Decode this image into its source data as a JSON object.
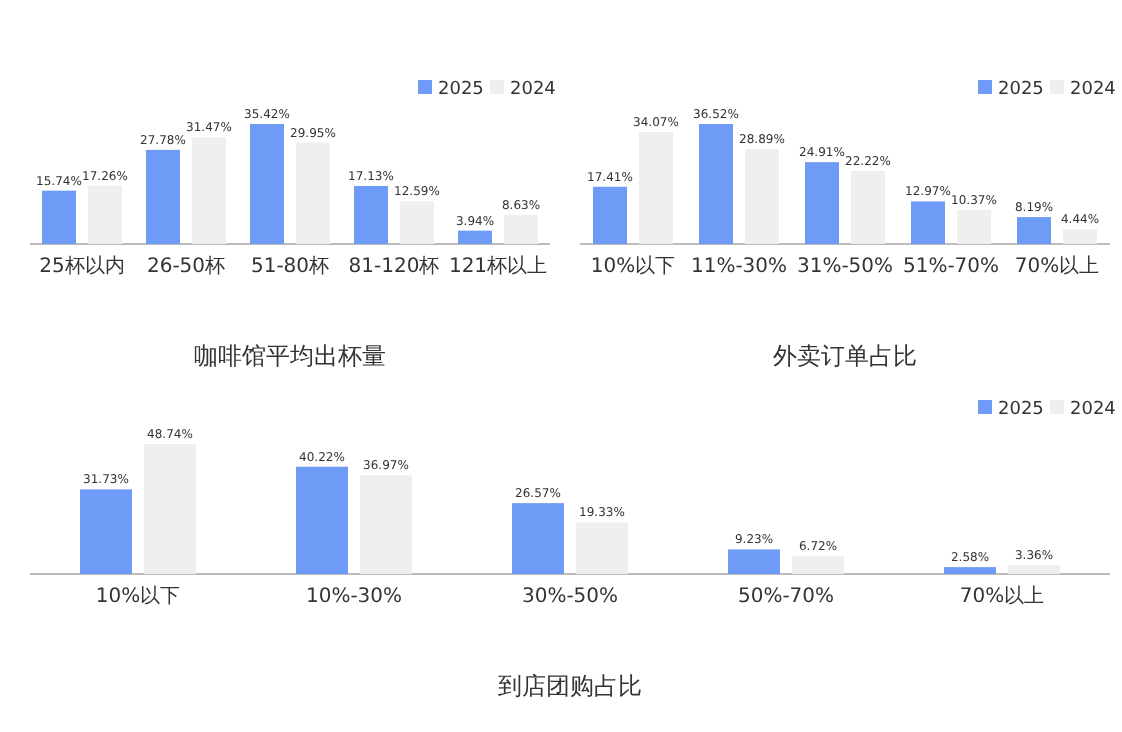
{
  "chart_data": [
    {
      "type": "bar",
      "title": "咖啡馆平均出杯量",
      "categories": [
        "25杯以内",
        "26-50杯",
        "51-80杯",
        "81-120杯",
        "121杯以上"
      ],
      "legend": "top right",
      "series": [
        {
          "name": "2025",
          "color": "#6e9bf5",
          "values": [
            15.74,
            27.78,
            35.42,
            17.13,
            3.94
          ],
          "value_labels": [
            "15.74%",
            "27.78%",
            "35.42%",
            "17.13%",
            "3.94%"
          ]
        },
        {
          "name": "2024",
          "color": "#efefef",
          "values": [
            17.26,
            31.47,
            29.95,
            12.59,
            8.63
          ],
          "value_labels": [
            "17.26%",
            "31.47%",
            "29.95%",
            "12.59%",
            "8.63%"
          ]
        }
      ]
    },
    {
      "type": "bar",
      "title": "外卖订单占比",
      "categories": [
        "10%以下",
        "11%-30%",
        "31%-50%",
        "51%-70%",
        "70%以上"
      ],
      "legend": "top right",
      "series": [
        {
          "name": "2025",
          "color": "#6e9bf5",
          "values": [
            17.41,
            36.52,
            24.91,
            12.97,
            8.19
          ],
          "value_labels": [
            "17.41%",
            "36.52%",
            "24.91%",
            "12.97%",
            "8.19%"
          ]
        },
        {
          "name": "2024",
          "color": "#efefef",
          "values": [
            34.07,
            28.89,
            22.22,
            10.37,
            4.44
          ],
          "value_labels": [
            "34.07%",
            "28.89%",
            "22.22%",
            "10.37%",
            "4.44%"
          ]
        }
      ]
    },
    {
      "type": "bar",
      "title": "到店团购占比",
      "categories": [
        "10%以下",
        "10%-30%",
        "30%-50%",
        "50%-70%",
        "70%以上"
      ],
      "legend": "top right",
      "series": [
        {
          "name": "2025",
          "color": "#6e9bf5",
          "values": [
            31.73,
            40.22,
            26.57,
            9.23,
            2.58
          ],
          "value_labels": [
            "31.73%",
            "40.22%",
            "26.57%",
            "9.23%",
            "2.58%"
          ]
        },
        {
          "name": "2024",
          "color": "#efefef",
          "values": [
            48.74,
            36.97,
            19.33,
            6.72,
            3.36
          ],
          "value_labels": [
            "48.74%",
            "36.97%",
            "19.33%",
            "6.72%",
            "3.36%"
          ]
        }
      ]
    }
  ]
}
